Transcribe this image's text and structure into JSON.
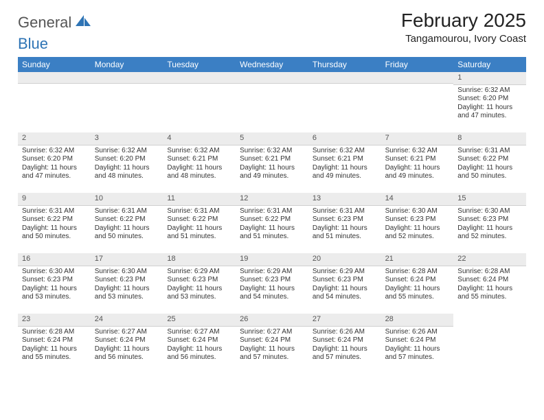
{
  "logo": {
    "word1": "General",
    "word2": "Blue"
  },
  "title": "February 2025",
  "location": "Tangamourou, Ivory Coast",
  "colors": {
    "header_bg": "#3b7fc4",
    "header_text": "#ffffff",
    "daynum_bg": "#ececec",
    "logo_blue": "#2e74b5"
  },
  "day_names": [
    "Sunday",
    "Monday",
    "Tuesday",
    "Wednesday",
    "Thursday",
    "Friday",
    "Saturday"
  ],
  "weeks": [
    [
      {
        "empty": true
      },
      {
        "empty": true
      },
      {
        "empty": true
      },
      {
        "empty": true
      },
      {
        "empty": true
      },
      {
        "empty": true
      },
      {
        "day": "1",
        "sunrise": "Sunrise: 6:32 AM",
        "sunset": "Sunset: 6:20 PM",
        "daylight": "Daylight: 11 hours and 47 minutes."
      }
    ],
    [
      {
        "day": "2",
        "sunrise": "Sunrise: 6:32 AM",
        "sunset": "Sunset: 6:20 PM",
        "daylight": "Daylight: 11 hours and 47 minutes."
      },
      {
        "day": "3",
        "sunrise": "Sunrise: 6:32 AM",
        "sunset": "Sunset: 6:20 PM",
        "daylight": "Daylight: 11 hours and 48 minutes."
      },
      {
        "day": "4",
        "sunrise": "Sunrise: 6:32 AM",
        "sunset": "Sunset: 6:21 PM",
        "daylight": "Daylight: 11 hours and 48 minutes."
      },
      {
        "day": "5",
        "sunrise": "Sunrise: 6:32 AM",
        "sunset": "Sunset: 6:21 PM",
        "daylight": "Daylight: 11 hours and 49 minutes."
      },
      {
        "day": "6",
        "sunrise": "Sunrise: 6:32 AM",
        "sunset": "Sunset: 6:21 PM",
        "daylight": "Daylight: 11 hours and 49 minutes."
      },
      {
        "day": "7",
        "sunrise": "Sunrise: 6:32 AM",
        "sunset": "Sunset: 6:21 PM",
        "daylight": "Daylight: 11 hours and 49 minutes."
      },
      {
        "day": "8",
        "sunrise": "Sunrise: 6:31 AM",
        "sunset": "Sunset: 6:22 PM",
        "daylight": "Daylight: 11 hours and 50 minutes."
      }
    ],
    [
      {
        "day": "9",
        "sunrise": "Sunrise: 6:31 AM",
        "sunset": "Sunset: 6:22 PM",
        "daylight": "Daylight: 11 hours and 50 minutes."
      },
      {
        "day": "10",
        "sunrise": "Sunrise: 6:31 AM",
        "sunset": "Sunset: 6:22 PM",
        "daylight": "Daylight: 11 hours and 50 minutes."
      },
      {
        "day": "11",
        "sunrise": "Sunrise: 6:31 AM",
        "sunset": "Sunset: 6:22 PM",
        "daylight": "Daylight: 11 hours and 51 minutes."
      },
      {
        "day": "12",
        "sunrise": "Sunrise: 6:31 AM",
        "sunset": "Sunset: 6:22 PM",
        "daylight": "Daylight: 11 hours and 51 minutes."
      },
      {
        "day": "13",
        "sunrise": "Sunrise: 6:31 AM",
        "sunset": "Sunset: 6:23 PM",
        "daylight": "Daylight: 11 hours and 51 minutes."
      },
      {
        "day": "14",
        "sunrise": "Sunrise: 6:30 AM",
        "sunset": "Sunset: 6:23 PM",
        "daylight": "Daylight: 11 hours and 52 minutes."
      },
      {
        "day": "15",
        "sunrise": "Sunrise: 6:30 AM",
        "sunset": "Sunset: 6:23 PM",
        "daylight": "Daylight: 11 hours and 52 minutes."
      }
    ],
    [
      {
        "day": "16",
        "sunrise": "Sunrise: 6:30 AM",
        "sunset": "Sunset: 6:23 PM",
        "daylight": "Daylight: 11 hours and 53 minutes."
      },
      {
        "day": "17",
        "sunrise": "Sunrise: 6:30 AM",
        "sunset": "Sunset: 6:23 PM",
        "daylight": "Daylight: 11 hours and 53 minutes."
      },
      {
        "day": "18",
        "sunrise": "Sunrise: 6:29 AM",
        "sunset": "Sunset: 6:23 PM",
        "daylight": "Daylight: 11 hours and 53 minutes."
      },
      {
        "day": "19",
        "sunrise": "Sunrise: 6:29 AM",
        "sunset": "Sunset: 6:23 PM",
        "daylight": "Daylight: 11 hours and 54 minutes."
      },
      {
        "day": "20",
        "sunrise": "Sunrise: 6:29 AM",
        "sunset": "Sunset: 6:23 PM",
        "daylight": "Daylight: 11 hours and 54 minutes."
      },
      {
        "day": "21",
        "sunrise": "Sunrise: 6:28 AM",
        "sunset": "Sunset: 6:24 PM",
        "daylight": "Daylight: 11 hours and 55 minutes."
      },
      {
        "day": "22",
        "sunrise": "Sunrise: 6:28 AM",
        "sunset": "Sunset: 6:24 PM",
        "daylight": "Daylight: 11 hours and 55 minutes."
      }
    ],
    [
      {
        "day": "23",
        "sunrise": "Sunrise: 6:28 AM",
        "sunset": "Sunset: 6:24 PM",
        "daylight": "Daylight: 11 hours and 55 minutes."
      },
      {
        "day": "24",
        "sunrise": "Sunrise: 6:27 AM",
        "sunset": "Sunset: 6:24 PM",
        "daylight": "Daylight: 11 hours and 56 minutes."
      },
      {
        "day": "25",
        "sunrise": "Sunrise: 6:27 AM",
        "sunset": "Sunset: 6:24 PM",
        "daylight": "Daylight: 11 hours and 56 minutes."
      },
      {
        "day": "26",
        "sunrise": "Sunrise: 6:27 AM",
        "sunset": "Sunset: 6:24 PM",
        "daylight": "Daylight: 11 hours and 57 minutes."
      },
      {
        "day": "27",
        "sunrise": "Sunrise: 6:26 AM",
        "sunset": "Sunset: 6:24 PM",
        "daylight": "Daylight: 11 hours and 57 minutes."
      },
      {
        "day": "28",
        "sunrise": "Sunrise: 6:26 AM",
        "sunset": "Sunset: 6:24 PM",
        "daylight": "Daylight: 11 hours and 57 minutes."
      },
      {
        "empty": true,
        "noBar": true
      }
    ]
  ]
}
